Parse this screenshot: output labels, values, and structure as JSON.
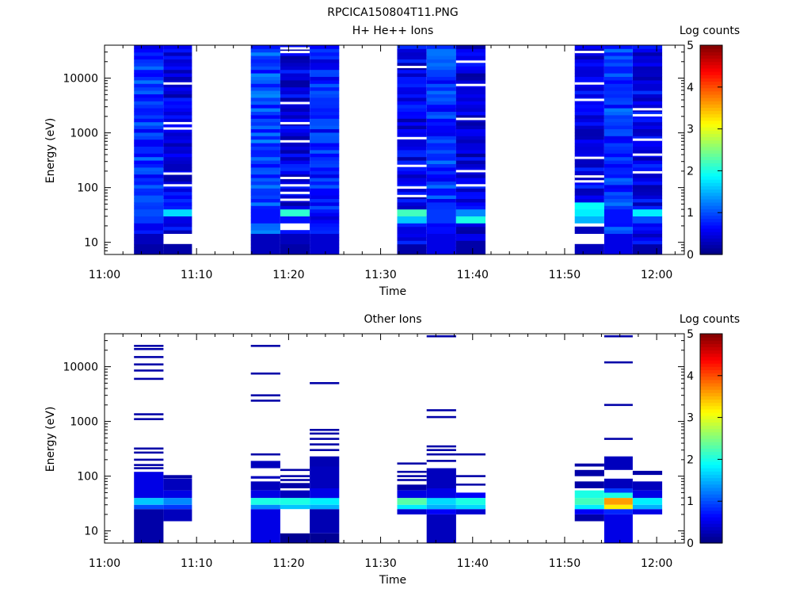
{
  "figure": {
    "title": "RPCICA150804T11.PNG"
  },
  "panels": [
    {
      "id": "top",
      "title": "H+ He++ Ions",
      "xlabel": "Time",
      "ylabel": "Energy (eV)",
      "colorbar_label": "Log counts"
    },
    {
      "id": "bottom",
      "title": "Other Ions",
      "xlabel": "Time",
      "ylabel": "Energy (eV)",
      "colorbar_label": "Log counts"
    }
  ],
  "x_ticks": [
    "11:00",
    "11:10",
    "11:20",
    "11:30",
    "11:40",
    "11:50",
    "12:00"
  ],
  "y_ticks": [
    "10",
    "100",
    "1000",
    "10000"
  ],
  "colorbar_ticks": [
    "0",
    "1",
    "2",
    "3",
    "4",
    "5"
  ],
  "colors": {
    "colormap": "jet",
    "background": "#ffffff",
    "axes": "#000000"
  },
  "chart_data": [
    {
      "type": "heatmap",
      "title": "H+ He++ Ions",
      "xlabel": "Time",
      "ylabel": "Energy (eV)",
      "x_unit": "minutes after 11:00",
      "xlim": [
        0,
        63
      ],
      "ylim": [
        6,
        40000
      ],
      "yscale": "log",
      "zlabel": "Log counts",
      "zlim": [
        0,
        5
      ],
      "columns": [
        {
          "t0": 3.2,
          "t1": 6.4,
          "base": 0.85,
          "bands": [
            [
              6,
              9,
              0.2
            ],
            [
              9,
              14,
              0.3
            ],
            [
              24,
              30,
              0.9
            ],
            [
              30,
              40,
              1.0
            ]
          ]
        },
        {
          "t0": 6.4,
          "t1": 9.5,
          "base": 0.5,
          "bands": [
            [
              6,
              9,
              0.2
            ],
            [
              9,
              14,
              -1
            ],
            [
              24,
              30,
              0.5
            ],
            [
              30,
              40,
              1.7
            ]
          ],
          "gaps": [
            8000,
            1200,
            1500,
            180,
            110
          ]
        },
        {
          "t0": 15.9,
          "t1": 19.1,
          "base": 0.95,
          "bands": [
            [
              6,
              14,
              0.3
            ],
            [
              24,
              40,
              0.7
            ]
          ]
        },
        {
          "t0": 19.1,
          "t1": 22.3,
          "base": 0.5,
          "bands": [
            [
              6,
              9,
              0.2
            ],
            [
              9,
              14,
              0.3
            ],
            [
              17,
              22,
              -1
            ],
            [
              24,
              30,
              0.7
            ],
            [
              30,
              42,
              2.1
            ]
          ],
          "gaps": [
            35000,
            30000,
            3500,
            1500,
            700,
            150,
            110,
            80,
            60
          ]
        },
        {
          "t0": 22.3,
          "t1": 25.5,
          "base": 0.75,
          "bands": [
            [
              6,
              14,
              0.4
            ]
          ]
        },
        {
          "t0": 31.8,
          "t1": 35.0,
          "base": 0.55,
          "bands": [
            [
              6,
              9,
              0.2
            ],
            [
              24,
              30,
              1.6
            ],
            [
              30,
              40,
              2.2
            ]
          ],
          "gaps": [
            16000,
            800,
            250,
            100,
            70
          ]
        },
        {
          "t0": 35.0,
          "t1": 38.2,
          "base": 0.85,
          "bands": [
            [
              6,
              14,
              0.5
            ],
            [
              24,
              40,
              0.9
            ]
          ]
        },
        {
          "t0": 38.2,
          "t1": 41.4,
          "base": 0.5,
          "bands": [
            [
              6,
              9,
              0.2
            ],
            [
              24,
              30,
              2.0
            ],
            [
              30,
              40,
              1.3
            ]
          ],
          "gaps": [
            20000,
            7500,
            1800,
            200,
            110
          ]
        },
        {
          "t0": 51.1,
          "t1": 54.3,
          "base": 0.5,
          "bands": [
            [
              6,
              9,
              0.3
            ],
            [
              9,
              14,
              -1
            ],
            [
              14,
              19,
              0.3
            ],
            [
              19,
              24,
              -1
            ],
            [
              24,
              30,
              1.5
            ],
            [
              30,
              40,
              1.8
            ],
            [
              40,
              55,
              1.9
            ]
          ],
          "gaps": [
            30000,
            8000,
            4000,
            350,
            160,
            130
          ]
        },
        {
          "t0": 54.3,
          "t1": 57.4,
          "base": 0.9,
          "bands": [
            [
              6,
              14,
              0.5
            ],
            [
              24,
              40,
              0.7
            ]
          ]
        },
        {
          "t0": 57.4,
          "t1": 60.6,
          "base": 0.55,
          "bands": [
            [
              6,
              9,
              0.2
            ],
            [
              24,
              30,
              1.0
            ],
            [
              30,
              40,
              1.8
            ]
          ],
          "gaps": [
            2700,
            2100,
            750,
            400,
            190
          ]
        }
      ]
    },
    {
      "type": "heatmap",
      "title": "Other Ions",
      "xlabel": "Time",
      "ylabel": "Energy (eV)",
      "x_unit": "minutes after 11:00",
      "xlim": [
        0,
        63
      ],
      "ylim": [
        6,
        40000
      ],
      "yscale": "log",
      "zlabel": "Log counts",
      "zlim": [
        0,
        5
      ],
      "columns": [
        {
          "t0": 3.2,
          "t1": 6.4,
          "rows": [
            [
              6,
              25,
              0.2
            ],
            [
              25,
              30,
              1.0
            ],
            [
              30,
              40,
              1.6
            ],
            [
              40,
              120,
              0.5
            ]
          ],
          "lines": [
            24000,
            21000,
            15000,
            11000,
            8500,
            6000,
            1350,
            1100,
            320,
            270,
            200,
            160,
            140
          ]
        },
        {
          "t0": 6.4,
          "t1": 9.5,
          "rows": [
            [
              15,
              25,
              0.3
            ],
            [
              25,
              30,
              0.9
            ],
            [
              30,
              40,
              1.3
            ],
            [
              40,
              55,
              0.5
            ],
            [
              55,
              90,
              0.3
            ]
          ],
          "lines": [
            100,
            95
          ]
        },
        {
          "t0": 15.9,
          "t1": 19.1,
          "rows": [
            [
              6,
              25,
              0.5
            ],
            [
              25,
              30,
              1.3
            ],
            [
              30,
              40,
              2.0
            ],
            [
              40,
              55,
              0.5
            ],
            [
              55,
              80,
              0.3
            ],
            [
              90,
              100,
              0.3
            ],
            [
              140,
              190,
              0.3
            ]
          ],
          "lines": [
            24000,
            7500,
            3000,
            2400,
            250
          ]
        },
        {
          "t0": 19.1,
          "t1": 22.3,
          "rows": [
            [
              25,
              30,
              1.6
            ],
            [
              30,
              40,
              2.0
            ],
            [
              40,
              55,
              0.3
            ],
            [
              60,
              75,
              0.2
            ],
            [
              6,
              9,
              0.1
            ]
          ],
          "lines": [
            130,
            100,
            85
          ]
        },
        {
          "t0": 22.3,
          "t1": 25.5,
          "rows": [
            [
              6,
              9,
              0.1
            ],
            [
              9,
              25,
              0.25
            ],
            [
              25,
              30,
              1.5
            ],
            [
              30,
              40,
              1.8
            ],
            [
              40,
              60,
              0.5
            ],
            [
              60,
              150,
              0.3
            ],
            [
              150,
              230,
              0.25
            ]
          ],
          "lines": [
            5000,
            700,
            600,
            480,
            380,
            300
          ]
        },
        {
          "t0": 31.8,
          "t1": 35.0,
          "rows": [
            [
              20,
              25,
              0.4
            ],
            [
              25,
              30,
              1.8
            ],
            [
              30,
              40,
              2.3
            ],
            [
              40,
              55,
              0.5
            ],
            [
              55,
              70,
              0.2
            ]
          ],
          "lines": [
            170,
            120,
            100,
            85
          ]
        },
        {
          "t0": 35.0,
          "t1": 38.2,
          "rows": [
            [
              6,
              20,
              0.3
            ],
            [
              20,
              25,
              0.6
            ],
            [
              25,
              30,
              1.5
            ],
            [
              30,
              40,
              1.7
            ],
            [
              40,
              60,
              0.5
            ],
            [
              60,
              140,
              0.3
            ]
          ],
          "lines": [
            36000,
            1600,
            1200,
            350,
            300,
            250,
            190
          ]
        },
        {
          "t0": 38.2,
          "t1": 41.4,
          "rows": [
            [
              20,
              25,
              0.4
            ],
            [
              25,
              30,
              1.7
            ],
            [
              30,
              40,
              2.0
            ],
            [
              40,
              50,
              0.6
            ]
          ],
          "lines": [
            250,
            100,
            70
          ]
        },
        {
          "t0": 51.1,
          "t1": 54.3,
          "rows": [
            [
              15,
              20,
              0.2
            ],
            [
              20,
              25,
              0.6
            ],
            [
              25,
              30,
              1.8
            ],
            [
              30,
              40,
              2.2
            ],
            [
              40,
              55,
              2.0
            ],
            [
              60,
              80,
              0.2
            ],
            [
              100,
              130,
              0.2
            ],
            [
              150,
              170,
              0.2
            ]
          ],
          "lines": []
        },
        {
          "t0": 54.3,
          "t1": 57.4,
          "rows": [
            [
              6,
              20,
              0.5
            ],
            [
              20,
              25,
              0.8
            ],
            [
              25,
              30,
              3.2
            ],
            [
              30,
              40,
              3.6
            ],
            [
              40,
              50,
              2.0
            ],
            [
              50,
              60,
              0.9
            ],
            [
              60,
              90,
              0.3
            ],
            [
              130,
              230,
              0.3
            ]
          ],
          "lines": [
            36000,
            12000,
            2000,
            480
          ]
        },
        {
          "t0": 57.4,
          "t1": 60.6,
          "rows": [
            [
              20,
              25,
              0.5
            ],
            [
              25,
              30,
              1.5
            ],
            [
              30,
              40,
              1.8
            ],
            [
              40,
              55,
              0.5
            ],
            [
              55,
              80,
              0.3
            ]
          ],
          "lines": [
            120,
            110
          ]
        }
      ]
    }
  ]
}
